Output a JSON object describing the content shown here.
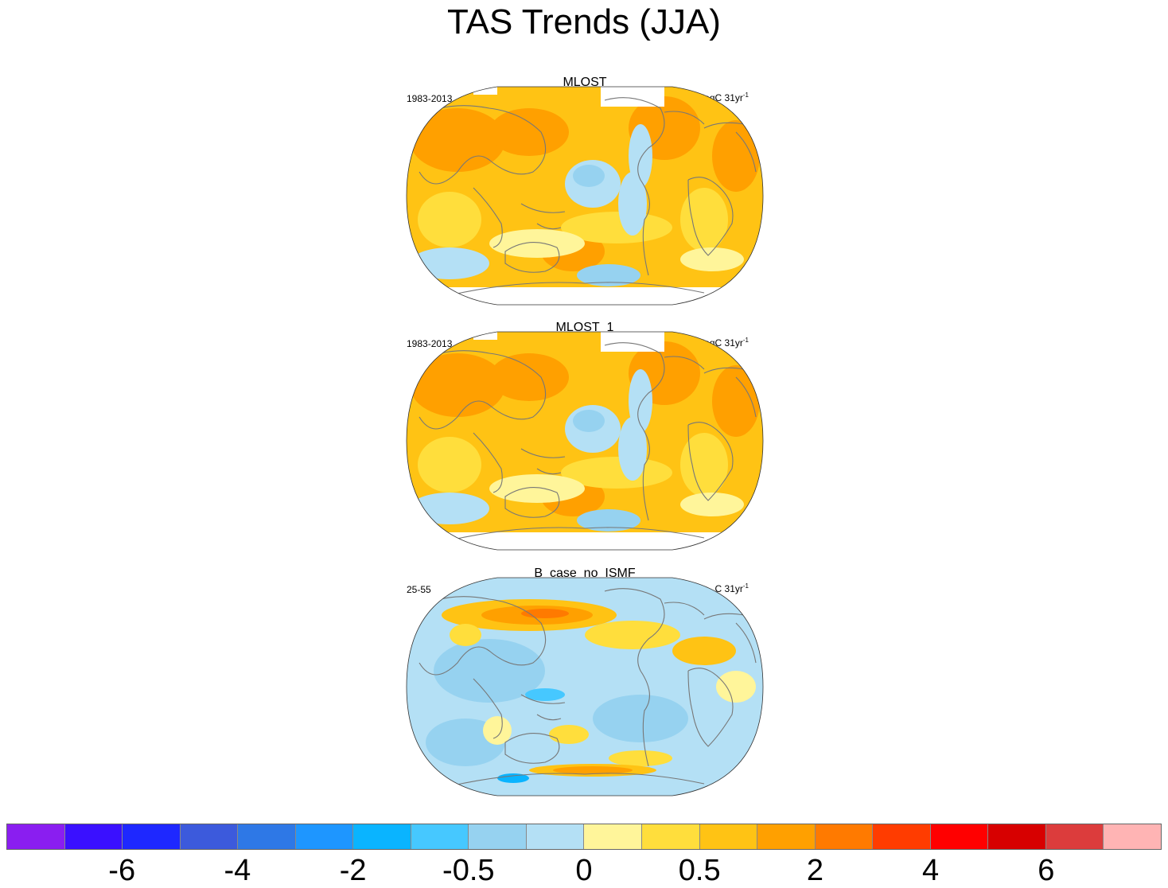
{
  "title": "TAS Trends (JJA)",
  "panels": [
    {
      "name": "MLOST",
      "left_label": "1983-2013",
      "right_label": "degC 31yr",
      "right_sup": "-1",
      "style": "obs"
    },
    {
      "name": "MLOST_1",
      "left_label": "1983-2013",
      "right_label": "degC 31yr",
      "right_sup": "-1",
      "style": "obs"
    },
    {
      "name": "B_case_no_ISMF",
      "left_label": "25-55",
      "right_label": "C 31yr",
      "right_sup": "-1",
      "style": "model"
    }
  ],
  "colorbar": {
    "colors": [
      "#8a1ef0",
      "#3a10ff",
      "#1e28ff",
      "#3c5adc",
      "#2e78e6",
      "#1e96ff",
      "#0ab4ff",
      "#46c8ff",
      "#96d2f0",
      "#b4e0f5",
      "#fff59a",
      "#ffde3c",
      "#ffc314",
      "#ffa000",
      "#ff7a00",
      "#ff3c00",
      "#ff0000",
      "#d70000",
      "#dc3c3c",
      "#ffb4b4"
    ],
    "tick_labels": [
      "-6",
      "-4",
      "-2",
      "-0.5",
      "0",
      "0.5",
      "2",
      "4",
      "6"
    ]
  },
  "chart_data": {
    "type": "heatmap",
    "title": "TAS Trends (JJA)",
    "units": "degC 31yr-1",
    "colorbar_labels": [
      "-6",
      "-4",
      "-2",
      "-0.5",
      "0",
      "0.5",
      "2",
      "4",
      "6"
    ],
    "panels": [
      "MLOST",
      "MLOST_1",
      "B_case_no_ISMF"
    ]
  }
}
